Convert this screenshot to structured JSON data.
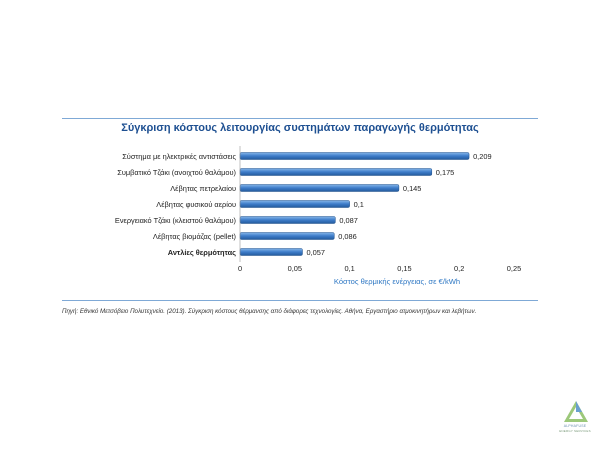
{
  "chart_data": {
    "type": "bar",
    "orientation": "horizontal",
    "title": "Σύγκριση κόστους λειτουργίας συστημάτων παραγωγής θερμότητας",
    "xlabel": "Κόστος θερμικής ενέργειας, σε €/kWh",
    "ylabel": "",
    "categories": [
      "Σύστημα με ηλεκτρικές αντιστάσεις",
      "Συμβατικό Τζάκι (ανοιχτού θαλάμου)",
      "Λέβητας πετρελαίου",
      "Λέβητας φυσικού αερίου",
      "Ενεργειακό Τζάκι (κλειστού θαλάμου)",
      "Λέβητας βιομάζας (pellet)",
      "Αντλίες θερμότητας"
    ],
    "values": [
      0.209,
      0.175,
      0.145,
      0.1,
      0.087,
      0.086,
      0.057
    ],
    "value_labels": [
      "0,209",
      "0,175",
      "0,145",
      "0,1",
      "0,087",
      "0,086",
      "0,057"
    ],
    "bold_category": "Αντλίες θερμότητας",
    "xlim": [
      0,
      0.25
    ],
    "xticks": [
      "0",
      "0,05",
      "0,1",
      "0,15",
      "0,2",
      "0,25"
    ],
    "grid": false,
    "bar_color": "#3d7cc9",
    "title_color": "#1d4f91",
    "xlabel_color": "#2f78c4"
  },
  "source_note": "Πηγή: Εθνικό Μετσόβειο Πολυτεχνείο. (2013). Σύγκριση κόστους θέρμανσης από διάφορες τεχνολογίες. Αθήνα, Εργαστήριο ατμοκινητήρων και λεβήτων.",
  "logo": {
    "icon": "alphafuse-triangle-logo-icon",
    "line1": "ALPHAFUSE",
    "line2": "ENERGY SERVICES"
  }
}
